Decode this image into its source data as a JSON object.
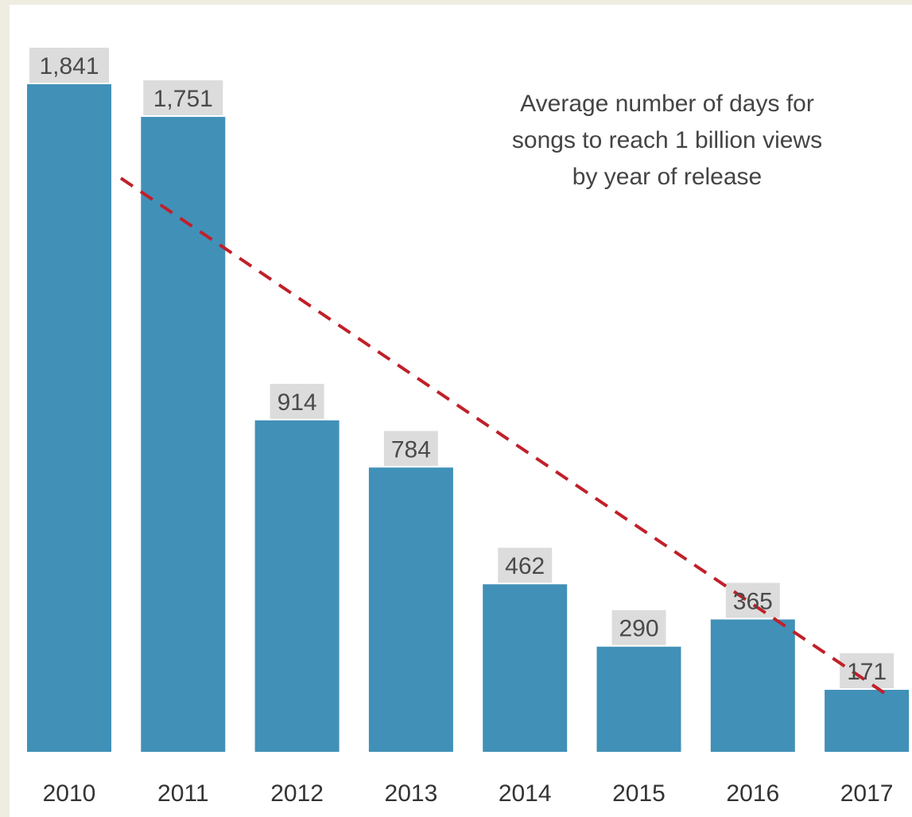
{
  "chart_data": {
    "type": "bar",
    "title_lines": [
      "Average number of days for",
      "songs to reach 1 billion views",
      "by year of release"
    ],
    "categories": [
      "2010",
      "2011",
      "2012",
      "2013",
      "2014",
      "2015",
      "2016",
      "2017"
    ],
    "values": [
      1841,
      1751,
      914,
      784,
      462,
      290,
      365,
      171
    ],
    "value_labels": [
      "1,841",
      "1,751",
      "914",
      "784",
      "462",
      "290",
      "365",
      "171"
    ],
    "xlabel": "",
    "ylabel": "",
    "ylim": [
      0,
      1841
    ],
    "grid": false,
    "legend": "none",
    "trendline": {
      "style": "dashed",
      "color": "#c0202a",
      "start": {
        "x": "2010",
        "y": 1560
      },
      "end": {
        "x": "2017",
        "y": 180
      }
    },
    "colors": {
      "bar": "#4190b7",
      "label_box": "#dcdcdc",
      "plot_background": "#ffffff",
      "page_background": "#efece2"
    }
  }
}
